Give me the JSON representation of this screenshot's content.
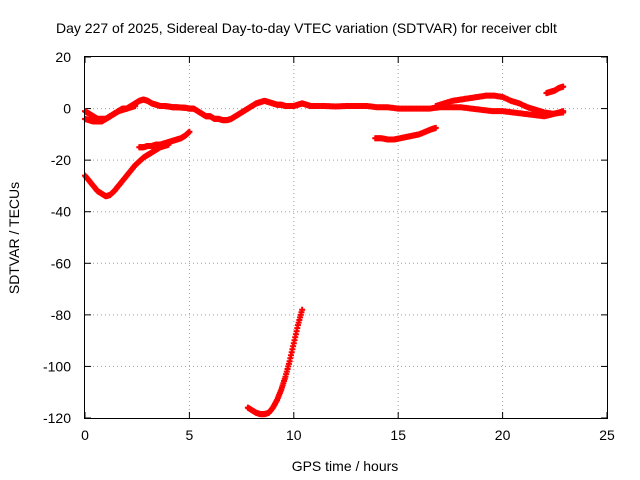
{
  "chart_data": {
    "type": "scatter",
    "title": "Day 227 of 2025, Sidereal Day-to-day VTEC variation (SDTVAR) for receiver cblt",
    "xlabel": "GPS time / hours",
    "ylabel": "SDTVAR / TECUs",
    "xlim": [
      0,
      25
    ],
    "ylim": [
      -120,
      20
    ],
    "xticks": [
      "0",
      "5",
      "10",
      "15",
      "20",
      "25"
    ],
    "yticks": [
      "20",
      "0",
      "-20",
      "-40",
      "-60",
      "-80",
      "-100",
      "-120"
    ],
    "grid": true,
    "marker_color": "#ff0000",
    "marker": "plus",
    "series": [
      {
        "x": [
          0.0,
          0.2,
          0.4,
          0.6,
          0.8,
          1.0,
          1.2,
          1.4,
          1.6,
          1.8,
          2.0,
          2.2,
          2.4,
          2.6,
          2.8,
          3.0,
          3.2,
          3.4,
          3.6,
          3.8,
          4.0,
          4.2,
          4.4,
          4.6,
          4.8,
          5.0,
          5.2,
          5.4,
          5.6,
          5.8,
          6.0,
          6.2,
          6.4,
          6.6,
          6.8,
          7.0,
          7.2,
          7.4,
          7.6,
          7.8,
          8.0,
          8.2,
          8.4,
          8.6,
          8.8,
          9.0,
          9.2,
          9.4,
          9.6,
          9.8,
          10.0,
          10.2,
          10.4,
          10.6,
          10.8,
          11.0,
          11.5,
          12.0,
          12.5,
          13.0,
          13.5,
          14.0,
          14.5,
          15.0,
          15.5,
          16.0,
          16.5,
          17.0,
          17.5,
          18.0,
          18.5,
          19.0,
          19.5,
          20.0,
          20.5,
          21.0,
          21.5,
          22.0,
          22.5,
          22.9
        ],
        "y": [
          -1,
          -2,
          -3,
          -4,
          -4,
          -4,
          -3,
          -2,
          -1,
          0,
          0,
          1,
          2,
          3,
          3.5,
          3,
          2,
          1.5,
          1,
          1,
          0.8,
          0.5,
          0.5,
          0.4,
          0.3,
          0,
          0,
          -1,
          -2,
          -3,
          -3,
          -4,
          -4,
          -4.5,
          -4.5,
          -4,
          -3,
          -2,
          -1,
          0,
          1,
          2,
          2.5,
          3,
          2.5,
          2,
          1.5,
          1.5,
          1,
          1,
          1,
          1.5,
          2,
          1.5,
          1,
          1,
          1,
          0.8,
          1,
          1,
          1,
          0.5,
          0.5,
          0,
          0,
          0,
          0,
          0.5,
          0.5,
          0.5,
          0,
          -0.5,
          -1,
          -1,
          -1.5,
          -2,
          -2.5,
          -3,
          -2,
          -1
        ]
      },
      {
        "x": [
          0.0,
          0.2,
          0.4,
          0.6,
          0.8,
          1.0,
          1.2,
          1.4,
          1.6,
          1.8,
          2.0,
          2.2,
          2.4
        ],
        "y": [
          -4,
          -4.5,
          -5,
          -5,
          -5,
          -4,
          -3,
          -2,
          -1,
          -0.5,
          0,
          0.5,
          1
        ]
      },
      {
        "x": [
          0.0,
          0.2,
          0.4,
          0.6,
          0.8,
          1.0,
          1.2,
          1.4,
          1.6,
          1.8,
          2.0,
          2.2,
          2.4,
          2.6,
          2.8,
          3.0,
          3.2,
          3.4,
          3.6,
          3.8,
          4.0
        ],
        "y": [
          -26,
          -28,
          -30,
          -32,
          -33,
          -34,
          -33.5,
          -32,
          -30,
          -28,
          -26,
          -24,
          -22,
          -20.5,
          -19,
          -18,
          -17,
          -16,
          -15,
          -14.5,
          -14
        ]
      },
      {
        "x": [
          2.6,
          2.8,
          3.0,
          3.2,
          3.4,
          3.6,
          3.8,
          4.0,
          4.2,
          4.4,
          4.6,
          4.8,
          5.0
        ],
        "y": [
          -15,
          -15,
          -14.5,
          -14.5,
          -14,
          -14,
          -13.5,
          -13,
          -12.5,
          -12,
          -11.5,
          -10.5,
          -9
        ]
      },
      {
        "x": [
          13.9,
          14.2,
          14.5,
          14.8,
          15.1,
          15.4,
          15.7,
          16.0,
          16.3,
          16.6,
          16.8
        ],
        "y": [
          -11.5,
          -11.5,
          -12,
          -12,
          -11.5,
          -11,
          -10.5,
          -10,
          -9,
          -8,
          -7.5
        ]
      },
      {
        "x": [
          16.8,
          17.2,
          17.6,
          18.0,
          18.4,
          18.8,
          19.2,
          19.6,
          20.0,
          20.4,
          20.8,
          21.2,
          21.6,
          22.0,
          22.4,
          22.9
        ],
        "y": [
          1,
          2,
          3,
          3.5,
          4,
          4.5,
          5,
          5,
          4.5,
          3,
          2,
          0.5,
          -0.5,
          -1.5,
          -2,
          -1.5
        ]
      },
      {
        "x": [
          22.1,
          22.3,
          22.5,
          22.7,
          22.9
        ],
        "y": [
          6,
          6.5,
          7,
          8,
          8.5
        ]
      },
      {
        "x": [
          7.8,
          8.0,
          8.2,
          8.4,
          8.6,
          8.8,
          9.0,
          9.2,
          9.4,
          9.6,
          9.8,
          10.0,
          10.2,
          10.4
        ],
        "y": [
          -116,
          -117,
          -118,
          -118.5,
          -118.5,
          -118,
          -116,
          -113,
          -109,
          -104,
          -98,
          -91,
          -84,
          -78
        ]
      }
    ]
  }
}
